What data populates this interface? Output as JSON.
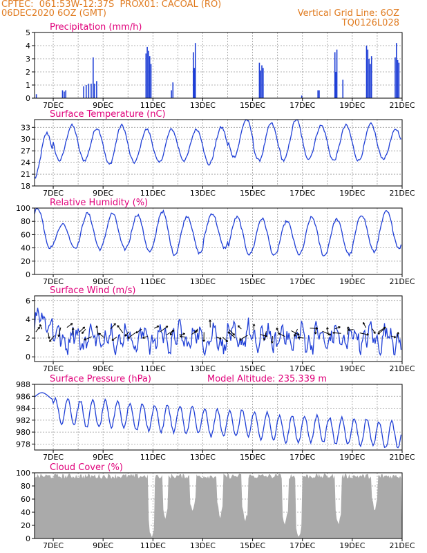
{
  "header": {
    "line1_left": "CPTEC:  061:53W-12:37S  PROX01: CACOAL (RO)",
    "line2_left": "06DEC2020 6OZ (GMT)",
    "line2_right": "Vertical Grid Line: 6OZ",
    "line3_right": "TQ0126L028"
  },
  "colors": {
    "header_text": "#e07b20",
    "panel_title": "#e0007a",
    "series": "#1f3fd6",
    "cloud_fill": "#aaaaaa",
    "grid": "#9a9a9a"
  },
  "x_axis": {
    "tick_labels": [
      "7DEC",
      "9DEC",
      "11DEC",
      "13DEC",
      "15DEC",
      "17DEC",
      "19DEC",
      "21DEC"
    ],
    "tick_days": [
      7,
      9,
      11,
      13,
      15,
      17,
      19,
      21
    ],
    "range": [
      6.25,
      21.0
    ]
  },
  "panels": [
    {
      "key": "precip",
      "title": "Precipitation (mm/h)",
      "y_ticks": [
        "0",
        "1",
        "2",
        "3",
        "4",
        "5"
      ],
      "ylim": [
        0,
        5
      ]
    },
    {
      "key": "temp",
      "title": "Surface Temperature (nC)",
      "y_ticks": [
        "18",
        "21",
        "24",
        "27",
        "30",
        "33"
      ],
      "ylim": [
        18,
        35
      ]
    },
    {
      "key": "rh",
      "title": "Relative Humidity (%)",
      "y_ticks": [
        "0",
        "20",
        "40",
        "60",
        "80",
        "100"
      ],
      "ylim": [
        0,
        100
      ]
    },
    {
      "key": "wind",
      "title": "Surface Wind (m/s)",
      "y_ticks": [
        "0",
        "2",
        "4",
        "6"
      ],
      "ylim": [
        -0.5,
        6.5
      ]
    },
    {
      "key": "press",
      "title": "Surface Pressure (hPa)",
      "extra": "Model Altitude: 235.339  m",
      "y_ticks": [
        "978",
        "980",
        "982",
        "984",
        "986",
        "988"
      ],
      "ylim": [
        977,
        988
      ]
    },
    {
      "key": "cloud",
      "title": "Cloud Cover (%)",
      "y_ticks": [
        "0",
        "20",
        "40",
        "60",
        "80",
        "100"
      ],
      "ylim": [
        0,
        100
      ]
    }
  ],
  "chart_data": [
    {
      "type": "bar",
      "title": "Precipitation (mm/h)",
      "ylim": [
        0,
        5
      ],
      "x_unit": "day of December 2020",
      "bars": [
        [
          6.3,
          0.3
        ],
        [
          7.35,
          0.6
        ],
        [
          7.42,
          0.5
        ],
        [
          7.48,
          0.6
        ],
        [
          8.2,
          0.9
        ],
        [
          8.3,
          1.0
        ],
        [
          8.4,
          1.1
        ],
        [
          8.5,
          1.1
        ],
        [
          8.58,
          3.1
        ],
        [
          8.63,
          1.1
        ],
        [
          8.72,
          1.3
        ],
        [
          10.7,
          3.4
        ],
        [
          10.75,
          3.9
        ],
        [
          10.8,
          3.6
        ],
        [
          10.85,
          3.2
        ],
        [
          10.9,
          2.6
        ],
        [
          11.72,
          0.6
        ],
        [
          11.78,
          1.2
        ],
        [
          12.6,
          3.5
        ],
        [
          12.64,
          2.3
        ],
        [
          12.68,
          4.2
        ],
        [
          15.25,
          2.7
        ],
        [
          15.3,
          2.1
        ],
        [
          15.35,
          2.5
        ],
        [
          15.4,
          2.3
        ],
        [
          16.95,
          0.2
        ],
        [
          17.6,
          0.6
        ],
        [
          17.65,
          0.6
        ],
        [
          18.28,
          3.5
        ],
        [
          18.32,
          2.0
        ],
        [
          18.36,
          3.7
        ],
        [
          18.6,
          1.4
        ],
        [
          19.55,
          4.0
        ],
        [
          19.6,
          3.7
        ],
        [
          19.65,
          3.0
        ],
        [
          19.7,
          2.6
        ],
        [
          19.75,
          3.2
        ],
        [
          20.7,
          3.1
        ],
        [
          20.75,
          4.2
        ],
        [
          20.8,
          2.9
        ],
        [
          20.85,
          2.7
        ]
      ]
    },
    {
      "type": "line",
      "title": "Surface Temperature (nC)",
      "ylim": [
        18,
        35
      ],
      "x_unit": "day of December 2020",
      "daily_min": [
        20,
        24.5,
        24.5,
        23.5,
        24,
        24,
        24.5,
        23.5,
        25.5,
        24.5,
        24.5,
        25,
        24.5,
        24.5,
        25
      ],
      "daily_max": [
        31.5,
        33.5,
        32.8,
        33.5,
        32.5,
        32.5,
        32.5,
        33,
        35,
        34,
        35,
        33.5,
        33.5,
        33.8,
        32.5
      ]
    },
    {
      "type": "line",
      "title": "Relative Humidity (%)",
      "ylim": [
        0,
        100
      ],
      "x_unit": "day of December 2020",
      "daily_min": [
        40,
        40,
        38,
        38,
        34,
        30,
        32,
        40,
        30,
        28,
        30,
        28,
        30,
        34,
        40
      ],
      "daily_max": [
        100,
        76,
        92,
        92,
        90,
        95,
        88,
        92,
        86,
        84,
        80,
        86,
        83,
        90,
        95
      ]
    },
    {
      "type": "line",
      "title": "Surface Wind (m/s)",
      "ylim": [
        -0.5,
        6.5
      ],
      "x_unit": "day of December 2020",
      "range": [
        0.2,
        5.7
      ],
      "vectors_every_hours": 6
    },
    {
      "type": "line",
      "title": "Surface Pressure (hPa)",
      "ylim": [
        977,
        988
      ],
      "x_unit": "day of December 2020",
      "daily_mean": [
        985,
        983.5,
        983,
        983,
        982.5,
        982.3,
        982,
        981.5,
        981.5,
        981,
        980.5,
        980.5,
        980.2,
        980,
        979.5
      ],
      "semidiurnal_amplitude": 2.5
    },
    {
      "type": "area",
      "title": "Cloud Cover (%)",
      "ylim": [
        0,
        100
      ],
      "x_unit": "day of December 2020",
      "typical": 95,
      "dips": [
        [
          10.95,
          0
        ],
        [
          11.5,
          30
        ],
        [
          12.6,
          40
        ],
        [
          13.7,
          30
        ],
        [
          14.7,
          25
        ],
        [
          16.3,
          20
        ],
        [
          16.85,
          0
        ],
        [
          18.45,
          20
        ],
        [
          19.9,
          40
        ]
      ]
    }
  ]
}
